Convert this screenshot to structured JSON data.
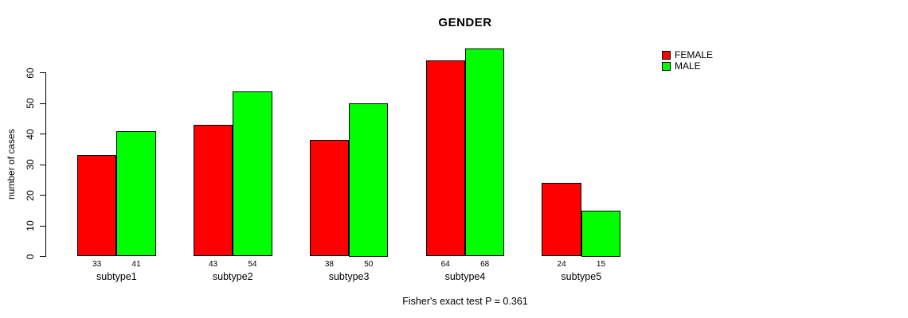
{
  "chart_data": {
    "type": "bar",
    "title": "GENDER",
    "xlabel": "",
    "ylabel": "number of cases",
    "categories": [
      "subtype1",
      "subtype2",
      "subtype3",
      "subtype4",
      "subtype5"
    ],
    "series": [
      {
        "name": "FEMALE",
        "color": "#FF0000",
        "values": [
          33,
          43,
          38,
          64,
          24
        ]
      },
      {
        "name": "MALE",
        "color": "#00FF00",
        "values": [
          41,
          54,
          50,
          68,
          15
        ]
      }
    ],
    "yticks": [
      0,
      10,
      20,
      30,
      40,
      50,
      60
    ],
    "ylim": [
      0,
      68
    ],
    "grid": false,
    "legend_position": "top-right",
    "bar_value_labels": true,
    "annotation": "Fisher's exact test P = 0.361"
  }
}
